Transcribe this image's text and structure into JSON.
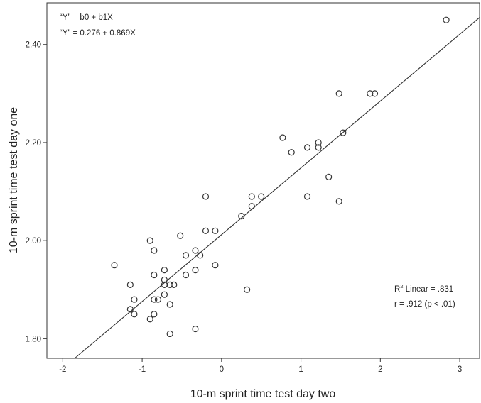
{
  "chart_data": {
    "type": "scatter",
    "xlabel": "10-m sprint time test day two",
    "ylabel": "10-m sprint time test day one",
    "xlim": [
      -2.2,
      3.25
    ],
    "ylim": [
      1.76,
      2.485
    ],
    "x_ticks": [
      -2,
      -1,
      0,
      1,
      2,
      3
    ],
    "y_ticks": [
      1.8,
      2.0,
      2.2,
      2.4
    ],
    "x_tick_labels": [
      "-2",
      "-1",
      "0",
      "1",
      "2",
      "3"
    ],
    "y_tick_labels": [
      "1.80",
      "2.00",
      "2.20",
      "2.40"
    ],
    "grid": false,
    "equation_generic": "“Y” = b0 + b1X",
    "equation_fit": "“Y” = 0.276 + 0.869X",
    "r2_prefix": "R",
    "r2_superscript": "2",
    "r2_suffix": " Linear = .831",
    "r_text": "r = .912 (p < .01)",
    "fit_line": {
      "x_start": -1.85,
      "y_start": 1.76,
      "x_end": 3.25,
      "y_end": 2.455
    },
    "points": [
      {
        "x": -1.35,
        "y": 1.95
      },
      {
        "x": -1.15,
        "y": 1.91
      },
      {
        "x": -1.15,
        "y": 1.86
      },
      {
        "x": -1.1,
        "y": 1.88
      },
      {
        "x": -1.1,
        "y": 1.85
      },
      {
        "x": -0.9,
        "y": 2.0
      },
      {
        "x": -0.9,
        "y": 1.84
      },
      {
        "x": -0.85,
        "y": 1.98
      },
      {
        "x": -0.85,
        "y": 1.93
      },
      {
        "x": -0.85,
        "y": 1.88
      },
      {
        "x": -0.85,
        "y": 1.85
      },
      {
        "x": -0.8,
        "y": 1.88
      },
      {
        "x": -0.72,
        "y": 1.94
      },
      {
        "x": -0.72,
        "y": 1.92
      },
      {
        "x": -0.72,
        "y": 1.91
      },
      {
        "x": -0.72,
        "y": 1.89
      },
      {
        "x": -0.65,
        "y": 1.91
      },
      {
        "x": -0.65,
        "y": 1.87
      },
      {
        "x": -0.65,
        "y": 1.81
      },
      {
        "x": -0.6,
        "y": 1.91
      },
      {
        "x": -0.52,
        "y": 2.01
      },
      {
        "x": -0.45,
        "y": 1.97
      },
      {
        "x": -0.45,
        "y": 1.93
      },
      {
        "x": -0.33,
        "y": 1.98
      },
      {
        "x": -0.33,
        "y": 1.94
      },
      {
        "x": -0.33,
        "y": 1.82
      },
      {
        "x": -0.27,
        "y": 1.97
      },
      {
        "x": -0.2,
        "y": 2.09
      },
      {
        "x": -0.2,
        "y": 2.02
      },
      {
        "x": -0.08,
        "y": 2.02
      },
      {
        "x": -0.08,
        "y": 1.95
      },
      {
        "x": 0.25,
        "y": 2.05
      },
      {
        "x": 0.32,
        "y": 1.9
      },
      {
        "x": 0.38,
        "y": 2.09
      },
      {
        "x": 0.38,
        "y": 2.07
      },
      {
        "x": 0.5,
        "y": 2.09
      },
      {
        "x": 0.77,
        "y": 2.21
      },
      {
        "x": 0.88,
        "y": 2.18
      },
      {
        "x": 1.08,
        "y": 2.19
      },
      {
        "x": 1.08,
        "y": 2.09
      },
      {
        "x": 1.22,
        "y": 2.2
      },
      {
        "x": 1.22,
        "y": 2.19
      },
      {
        "x": 1.35,
        "y": 2.13
      },
      {
        "x": 1.48,
        "y": 2.3
      },
      {
        "x": 1.48,
        "y": 2.08
      },
      {
        "x": 1.53,
        "y": 2.22
      },
      {
        "x": 1.87,
        "y": 2.3
      },
      {
        "x": 1.93,
        "y": 2.3
      },
      {
        "x": 2.83,
        "y": 2.45
      }
    ]
  }
}
